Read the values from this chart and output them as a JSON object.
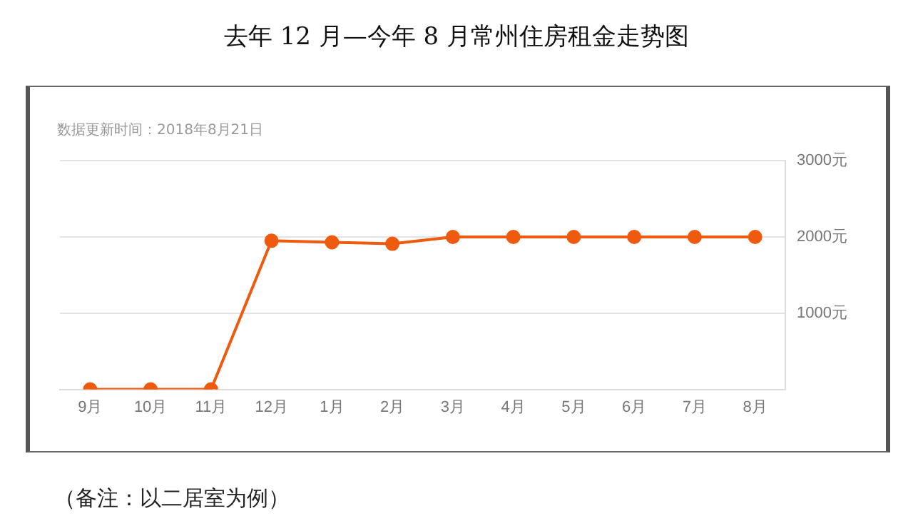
{
  "chart_data": {
    "type": "line",
    "title": "去年 12 月—今年 8 月常州住房租金走势图",
    "subtitle": "数据更新时间：2018年8月21日",
    "categories": [
      "9月",
      "10月",
      "11月",
      "12月",
      "1月",
      "2月",
      "3月",
      "4月",
      "5月",
      "6月",
      "7月",
      "8月"
    ],
    "series": [
      {
        "color": "#ee5a0e",
        "values": [
          0,
          0,
          0,
          1950,
          1930,
          1910,
          2000,
          2000,
          2000,
          2000,
          2000,
          2000
        ]
      }
    ],
    "ylim": [
      0,
      3000
    ],
    "yticks": [
      {
        "value": 0,
        "label": null
      },
      {
        "value": 1000,
        "label": "1000元"
      },
      {
        "value": 2000,
        "label": "2000元"
      },
      {
        "value": 3000,
        "label": "3000元"
      }
    ],
    "grid": "y",
    "legend": false,
    "marker": "circle",
    "line_style": "solid",
    "annotations": [
      "（备注：以二居室为例）"
    ]
  }
}
